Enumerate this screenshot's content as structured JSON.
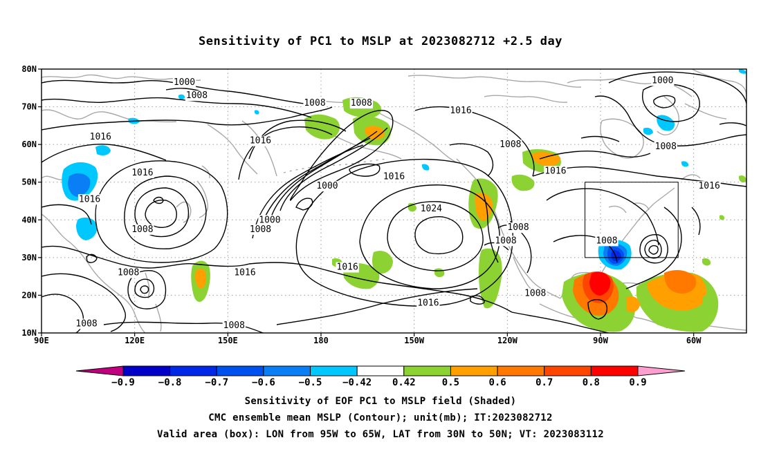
{
  "title": "Sensitivity of PC1 to MSLP at 2023082712 +2.5 day",
  "map": {
    "lat_labels": [
      "80N",
      "70N",
      "60N",
      "50N",
      "40N",
      "30N",
      "20N",
      "10N"
    ],
    "lat_values": [
      80,
      70,
      60,
      50,
      40,
      30,
      20,
      10
    ],
    "lon_labels": [
      "90E",
      "120E",
      "150E",
      "180",
      "150W",
      "120W",
      "90W",
      "60W"
    ],
    "lon_values": [
      90,
      120,
      150,
      180,
      210,
      240,
      270,
      300
    ],
    "lon_range": [
      90,
      317
    ],
    "lat_range": [
      10,
      80
    ],
    "valid_box": {
      "lon": [
        265,
        295
      ],
      "lat": [
        30,
        50
      ]
    },
    "contour_labels": [
      {
        "text": "1000",
        "lon": 136,
        "lat": 76.5
      },
      {
        "text": "1008",
        "lon": 140,
        "lat": 73
      },
      {
        "text": "1008",
        "lon": 178,
        "lat": 71
      },
      {
        "text": "1008",
        "lon": 193,
        "lat": 71
      },
      {
        "text": "1016",
        "lon": 225,
        "lat": 69
      },
      {
        "text": "1016",
        "lon": 109,
        "lat": 62
      },
      {
        "text": "1016",
        "lon": 160.5,
        "lat": 61
      },
      {
        "text": "1008",
        "lon": 241,
        "lat": 60
      },
      {
        "text": "1000",
        "lon": 290,
        "lat": 77
      },
      {
        "text": "1008",
        "lon": 291,
        "lat": 59.5
      },
      {
        "text": "1016",
        "lon": 122.5,
        "lat": 52.5
      },
      {
        "text": "1016",
        "lon": 255.5,
        "lat": 53
      },
      {
        "text": "1016",
        "lon": 203.5,
        "lat": 51.5
      },
      {
        "text": "1000",
        "lon": 182,
        "lat": 49
      },
      {
        "text": "1016",
        "lon": 305,
        "lat": 49
      },
      {
        "text": "1016",
        "lon": 105.5,
        "lat": 45.5
      },
      {
        "text": "1024",
        "lon": 215.5,
        "lat": 43
      },
      {
        "text": "1000",
        "lon": 163.5,
        "lat": 40
      },
      {
        "text": "1008",
        "lon": 122.5,
        "lat": 37.5
      },
      {
        "text": "1008",
        "lon": 160.5,
        "lat": 37.5
      },
      {
        "text": "1008",
        "lon": 243.5,
        "lat": 38
      },
      {
        "text": "1008",
        "lon": 239.5,
        "lat": 34.5
      },
      {
        "text": "1008",
        "lon": 272,
        "lat": 34.5
      },
      {
        "text": "1016",
        "lon": 155.5,
        "lat": 26
      },
      {
        "text": "1016",
        "lon": 188.5,
        "lat": 27.5
      },
      {
        "text": "1008",
        "lon": 118,
        "lat": 26
      },
      {
        "text": "1016",
        "lon": 214.5,
        "lat": 18
      },
      {
        "text": "1008",
        "lon": 249,
        "lat": 20.5
      },
      {
        "text": "1008",
        "lon": 104.5,
        "lat": 12.5
      },
      {
        "text": "1008",
        "lon": 152,
        "lat": 12
      }
    ]
  },
  "colorbar": {
    "labels": [
      "-0.9",
      "-0.8",
      "-0.7",
      "-0.6",
      "-0.5",
      "-0.42",
      "0.42",
      "0.5",
      "0.6",
      "0.7",
      "0.8",
      "0.9"
    ],
    "colors": [
      "#c0007f",
      "#0000c8",
      "#0028e6",
      "#0050f0",
      "#0a7ff5",
      "#00c8ff",
      "#ffffff",
      "#8cd232",
      "#ffa000",
      "#ff7800",
      "#ff4600",
      "#ff0000",
      "#ff9fd0"
    ]
  },
  "footer": {
    "line1": "Sensitivity of EOF PC1 to MSLP field (Shaded)",
    "line2": "CMC ensemble mean MSLP (Contour); unit(mb); IT:2023082712",
    "line3": "Valid area (box): LON from 95W to 65W, LAT from 30N to 50N; VT: 2023083112"
  }
}
